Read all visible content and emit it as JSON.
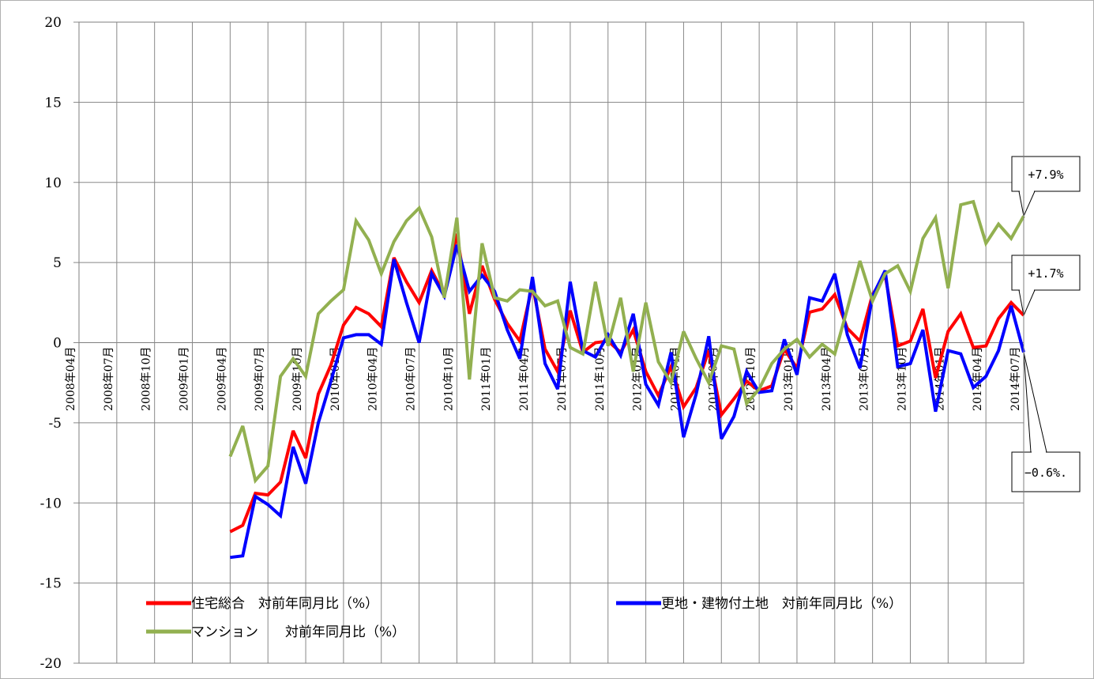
{
  "chart_data": {
    "type": "line",
    "ylim": [
      -20,
      20
    ],
    "yticks": [
      20,
      15,
      10,
      5,
      0,
      -5,
      -10,
      -15,
      -20
    ],
    "grid": true,
    "legend_position": "bottom-left",
    "xtick_labels": [
      "2008年04月",
      "2008年07月",
      "2008年10月",
      "2009年01月",
      "2009年04月",
      "2009年07月",
      "2009年10月",
      "2010年01月",
      "2010年04月",
      "2010年07月",
      "2010年10月",
      "2011年01月",
      "2011年04月",
      "2011年07月",
      "2011年10月",
      "2012年01月",
      "2012年04月",
      "2012年07月",
      "2012年10月",
      "2013年01月",
      "2013年04月",
      "2013年07月",
      "2013年10月",
      "2014年01月",
      "2014年04月",
      "2014年07月"
    ],
    "x_start": "2008-04",
    "x_end": "2014-07",
    "series": [
      {
        "name": "住宅総合　対前年同月比（%）",
        "color": "#ff0000",
        "start": "2009-04",
        "values": [
          -11.8,
          -11.4,
          -9.4,
          -9.5,
          -8.7,
          -5.5,
          -7.2,
          -3.2,
          -1.4,
          1.1,
          2.2,
          1.8,
          1.0,
          5.3,
          3.8,
          2.5,
          4.5,
          3.0,
          6.8,
          1.8,
          4.8,
          2.7,
          1.2,
          0.1,
          3.6,
          -0.4,
          -1.8,
          2.0,
          -0.6,
          0.0,
          0.1,
          -0.6,
          0.8,
          -1.8,
          -3.3,
          -1.5,
          -4.0,
          -2.8,
          -0.5,
          -4.5,
          -3.5,
          -2.4,
          -3.0,
          -2.7,
          -0.4,
          -1.6,
          1.9,
          2.1,
          3.0,
          0.9,
          0.1,
          3.0,
          4.2,
          -0.2,
          0.1,
          2.1,
          -2.2,
          0.7,
          1.8,
          -0.3,
          -0.2,
          1.5,
          2.5,
          1.7
        ]
      },
      {
        "name": "更地・建物付土地　対前年同月比（%）",
        "color": "#0000ff",
        "start": "2009-04",
        "values": [
          -13.4,
          -13.3,
          -9.6,
          -10.1,
          -10.8,
          -6.5,
          -8.8,
          -5.0,
          -2.4,
          0.3,
          0.5,
          0.5,
          -0.1,
          5.2,
          2.5,
          0.0,
          4.3,
          2.9,
          6.1,
          3.2,
          4.2,
          3.2,
          0.8,
          -1.0,
          4.1,
          -1.3,
          -2.9,
          3.8,
          -0.5,
          -0.9,
          0.5,
          -0.8,
          1.8,
          -2.6,
          -3.9,
          -0.6,
          -5.9,
          -3.2,
          0.4,
          -6.0,
          -4.6,
          -1.8,
          -3.1,
          -3.0,
          0.2,
          -2.0,
          2.8,
          2.6,
          4.3,
          0.5,
          -1.6,
          2.9,
          4.5,
          -1.5,
          -1.3,
          0.8,
          -4.3,
          -0.5,
          -0.7,
          -2.8,
          -2.1,
          -0.5,
          2.3,
          -0.6
        ]
      },
      {
        "name": "マンション　　対前年同月比（%）",
        "color": "#92b050",
        "start": "2009-04",
        "values": [
          -7.1,
          -5.2,
          -8.6,
          -7.7,
          -2.1,
          -1.0,
          -2.1,
          1.8,
          2.6,
          3.3,
          7.6,
          6.4,
          4.3,
          6.3,
          7.6,
          8.4,
          6.6,
          2.8,
          7.8,
          -2.3,
          6.2,
          2.8,
          2.6,
          3.3,
          3.2,
          2.3,
          2.6,
          -0.3,
          -0.7,
          3.8,
          -0.2,
          2.8,
          -1.8,
          2.5,
          -1.2,
          -2.5,
          0.7,
          -1.0,
          -2.5,
          -0.2,
          -0.4,
          -3.8,
          -2.9,
          -1.3,
          -0.4,
          0.2,
          -0.9,
          -0.1,
          -0.7,
          2.1,
          5.1,
          2.6,
          4.3,
          4.8,
          3.2,
          6.5,
          7.8,
          3.4,
          8.6,
          8.8,
          6.2,
          7.4,
          6.5,
          7.9
        ]
      }
    ],
    "annotations": [
      "+7.9%",
      "+1.7%",
      "−0.6%."
    ]
  }
}
